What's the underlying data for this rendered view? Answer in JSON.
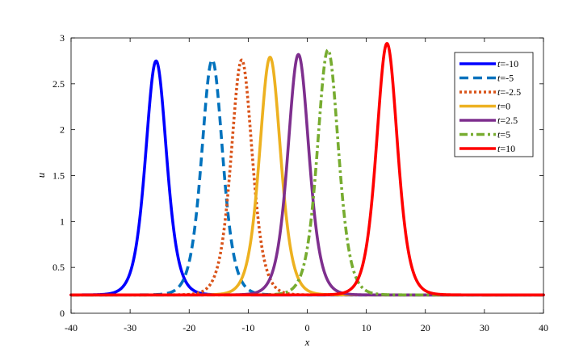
{
  "chart_data": {
    "type": "line",
    "title": "",
    "xlabel": "x",
    "ylabel": "u",
    "xlim": [
      -40,
      40
    ],
    "ylim": [
      0,
      3
    ],
    "xticks": [
      -40,
      -30,
      -20,
      -10,
      0,
      10,
      20,
      30,
      40
    ],
    "yticks": [
      0,
      0.5,
      1,
      1.5,
      2,
      2.5,
      3
    ],
    "xtick_labels": [
      "-40",
      "-30",
      "-20",
      "-10",
      "0",
      "10",
      "20",
      "30",
      "40"
    ],
    "ytick_labels": [
      "0",
      "0.5",
      "1",
      "1.5",
      "2",
      "2.5",
      "3"
    ],
    "grid": false,
    "legend_position": "top-right",
    "baseline": 0.2,
    "series": [
      {
        "name_prefix": "t",
        "name_value": "=-10",
        "center": -25.6,
        "peak": 2.75,
        "color": "#0000ff",
        "style": "solid"
      },
      {
        "name_prefix": "t",
        "name_value": "=-5",
        "center": -16.1,
        "peak": 2.76,
        "color": "#0072bd",
        "style": "dashed"
      },
      {
        "name_prefix": "t",
        "name_value": "=-2.5",
        "center": -11.1,
        "peak": 2.76,
        "color": "#d95319",
        "style": "dotted"
      },
      {
        "name_prefix": "t",
        "name_value": "=0",
        "center": -6.3,
        "peak": 2.79,
        "color": "#edb120",
        "style": "solid"
      },
      {
        "name_prefix": "t",
        "name_value": "=2.5",
        "center": -1.5,
        "peak": 2.82,
        "color": "#7e2f8e",
        "style": "solid"
      },
      {
        "name_prefix": "t",
        "name_value": "=5",
        "center": 3.5,
        "peak": 2.87,
        "color": "#77ac30",
        "style": "dashdot"
      },
      {
        "name_prefix": "t",
        "name_value": "=10",
        "center": 13.5,
        "peak": 2.94,
        "color": "#ff0000",
        "style": "solid"
      }
    ]
  }
}
